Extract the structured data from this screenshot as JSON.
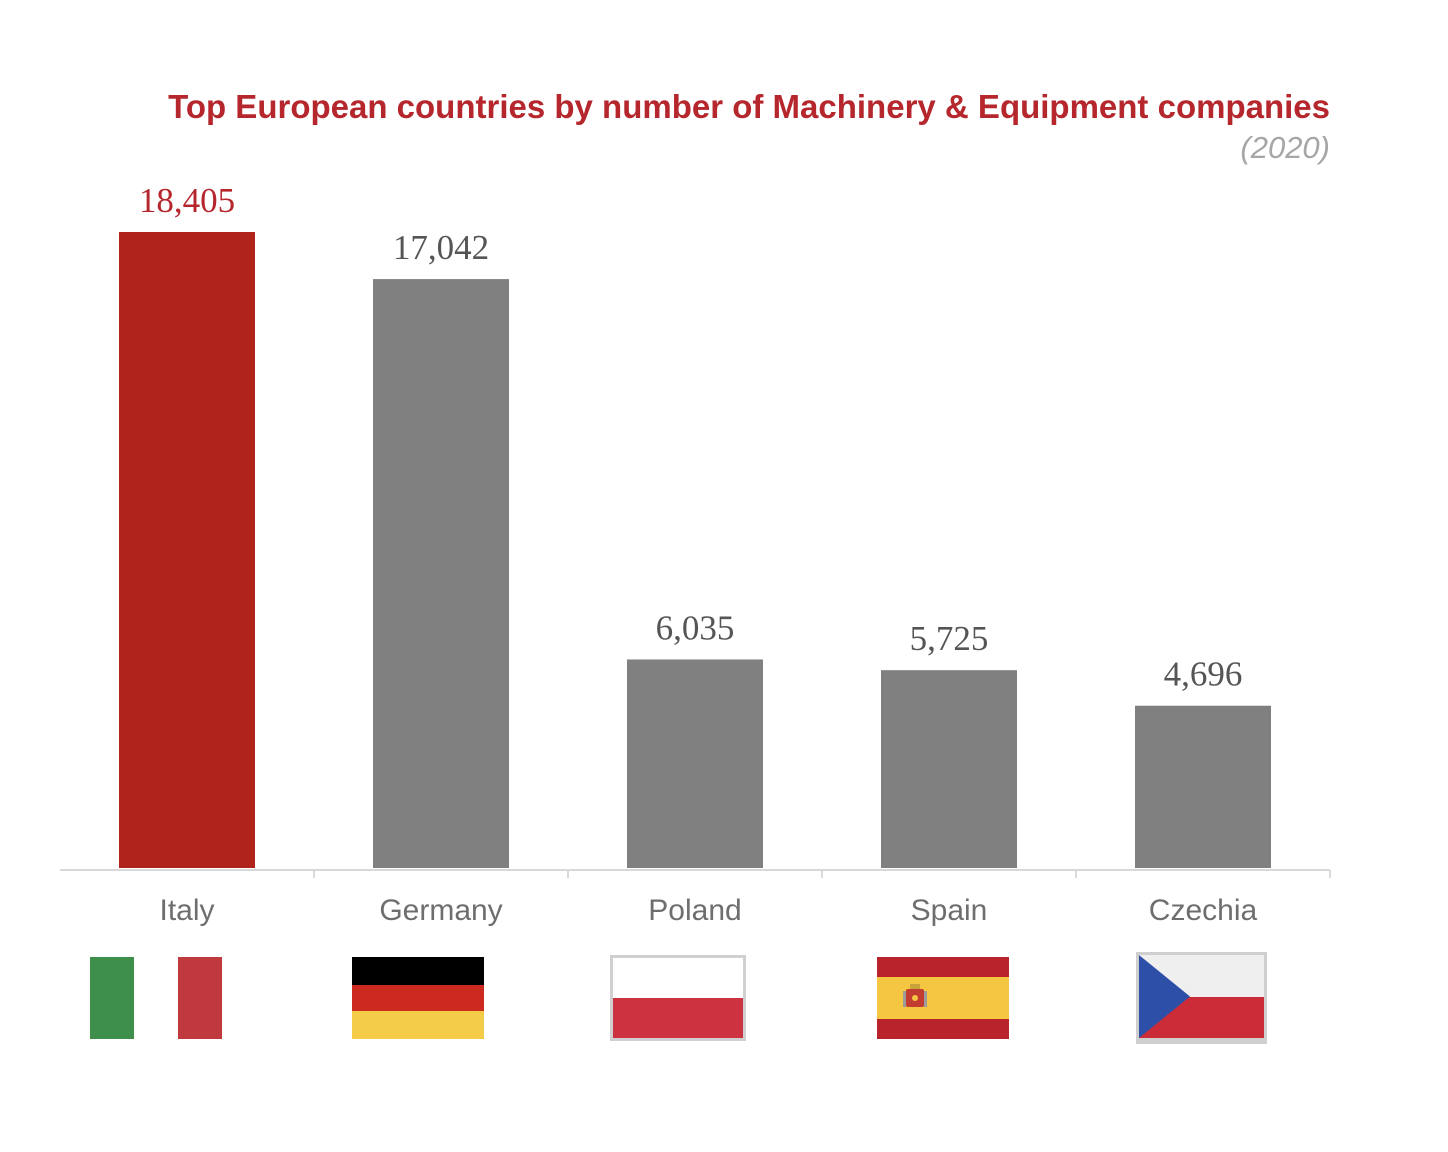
{
  "chart_data": {
    "type": "bar",
    "title": "Top European countries by number of Machinery & Equipment companies",
    "subtitle": "(2020)",
    "categories": [
      "Italy",
      "Germany",
      "Poland",
      "Spain",
      "Czechia"
    ],
    "values": [
      18405,
      17042,
      6035,
      5725,
      4696
    ],
    "value_labels": [
      "18,405",
      "17,042",
      "6,035",
      "5,725",
      "4,696"
    ],
    "xlabel": "",
    "ylabel": "",
    "ylim": [
      0,
      18405
    ],
    "grid": false,
    "highlight_index": 0,
    "colors": {
      "highlight": "#b0231a",
      "default": "#808080",
      "highlight_label": "#b5272d",
      "default_label": "#555555",
      "axis": "#d9d9d9"
    },
    "flags": [
      {
        "country": "Italy",
        "icon": "italy-flag-icon"
      },
      {
        "country": "Germany",
        "icon": "germany-flag-icon"
      },
      {
        "country": "Poland",
        "icon": "poland-flag-icon"
      },
      {
        "country": "Spain",
        "icon": "spain-flag-icon"
      },
      {
        "country": "Czechia",
        "icon": "czechia-flag-icon"
      }
    ]
  }
}
